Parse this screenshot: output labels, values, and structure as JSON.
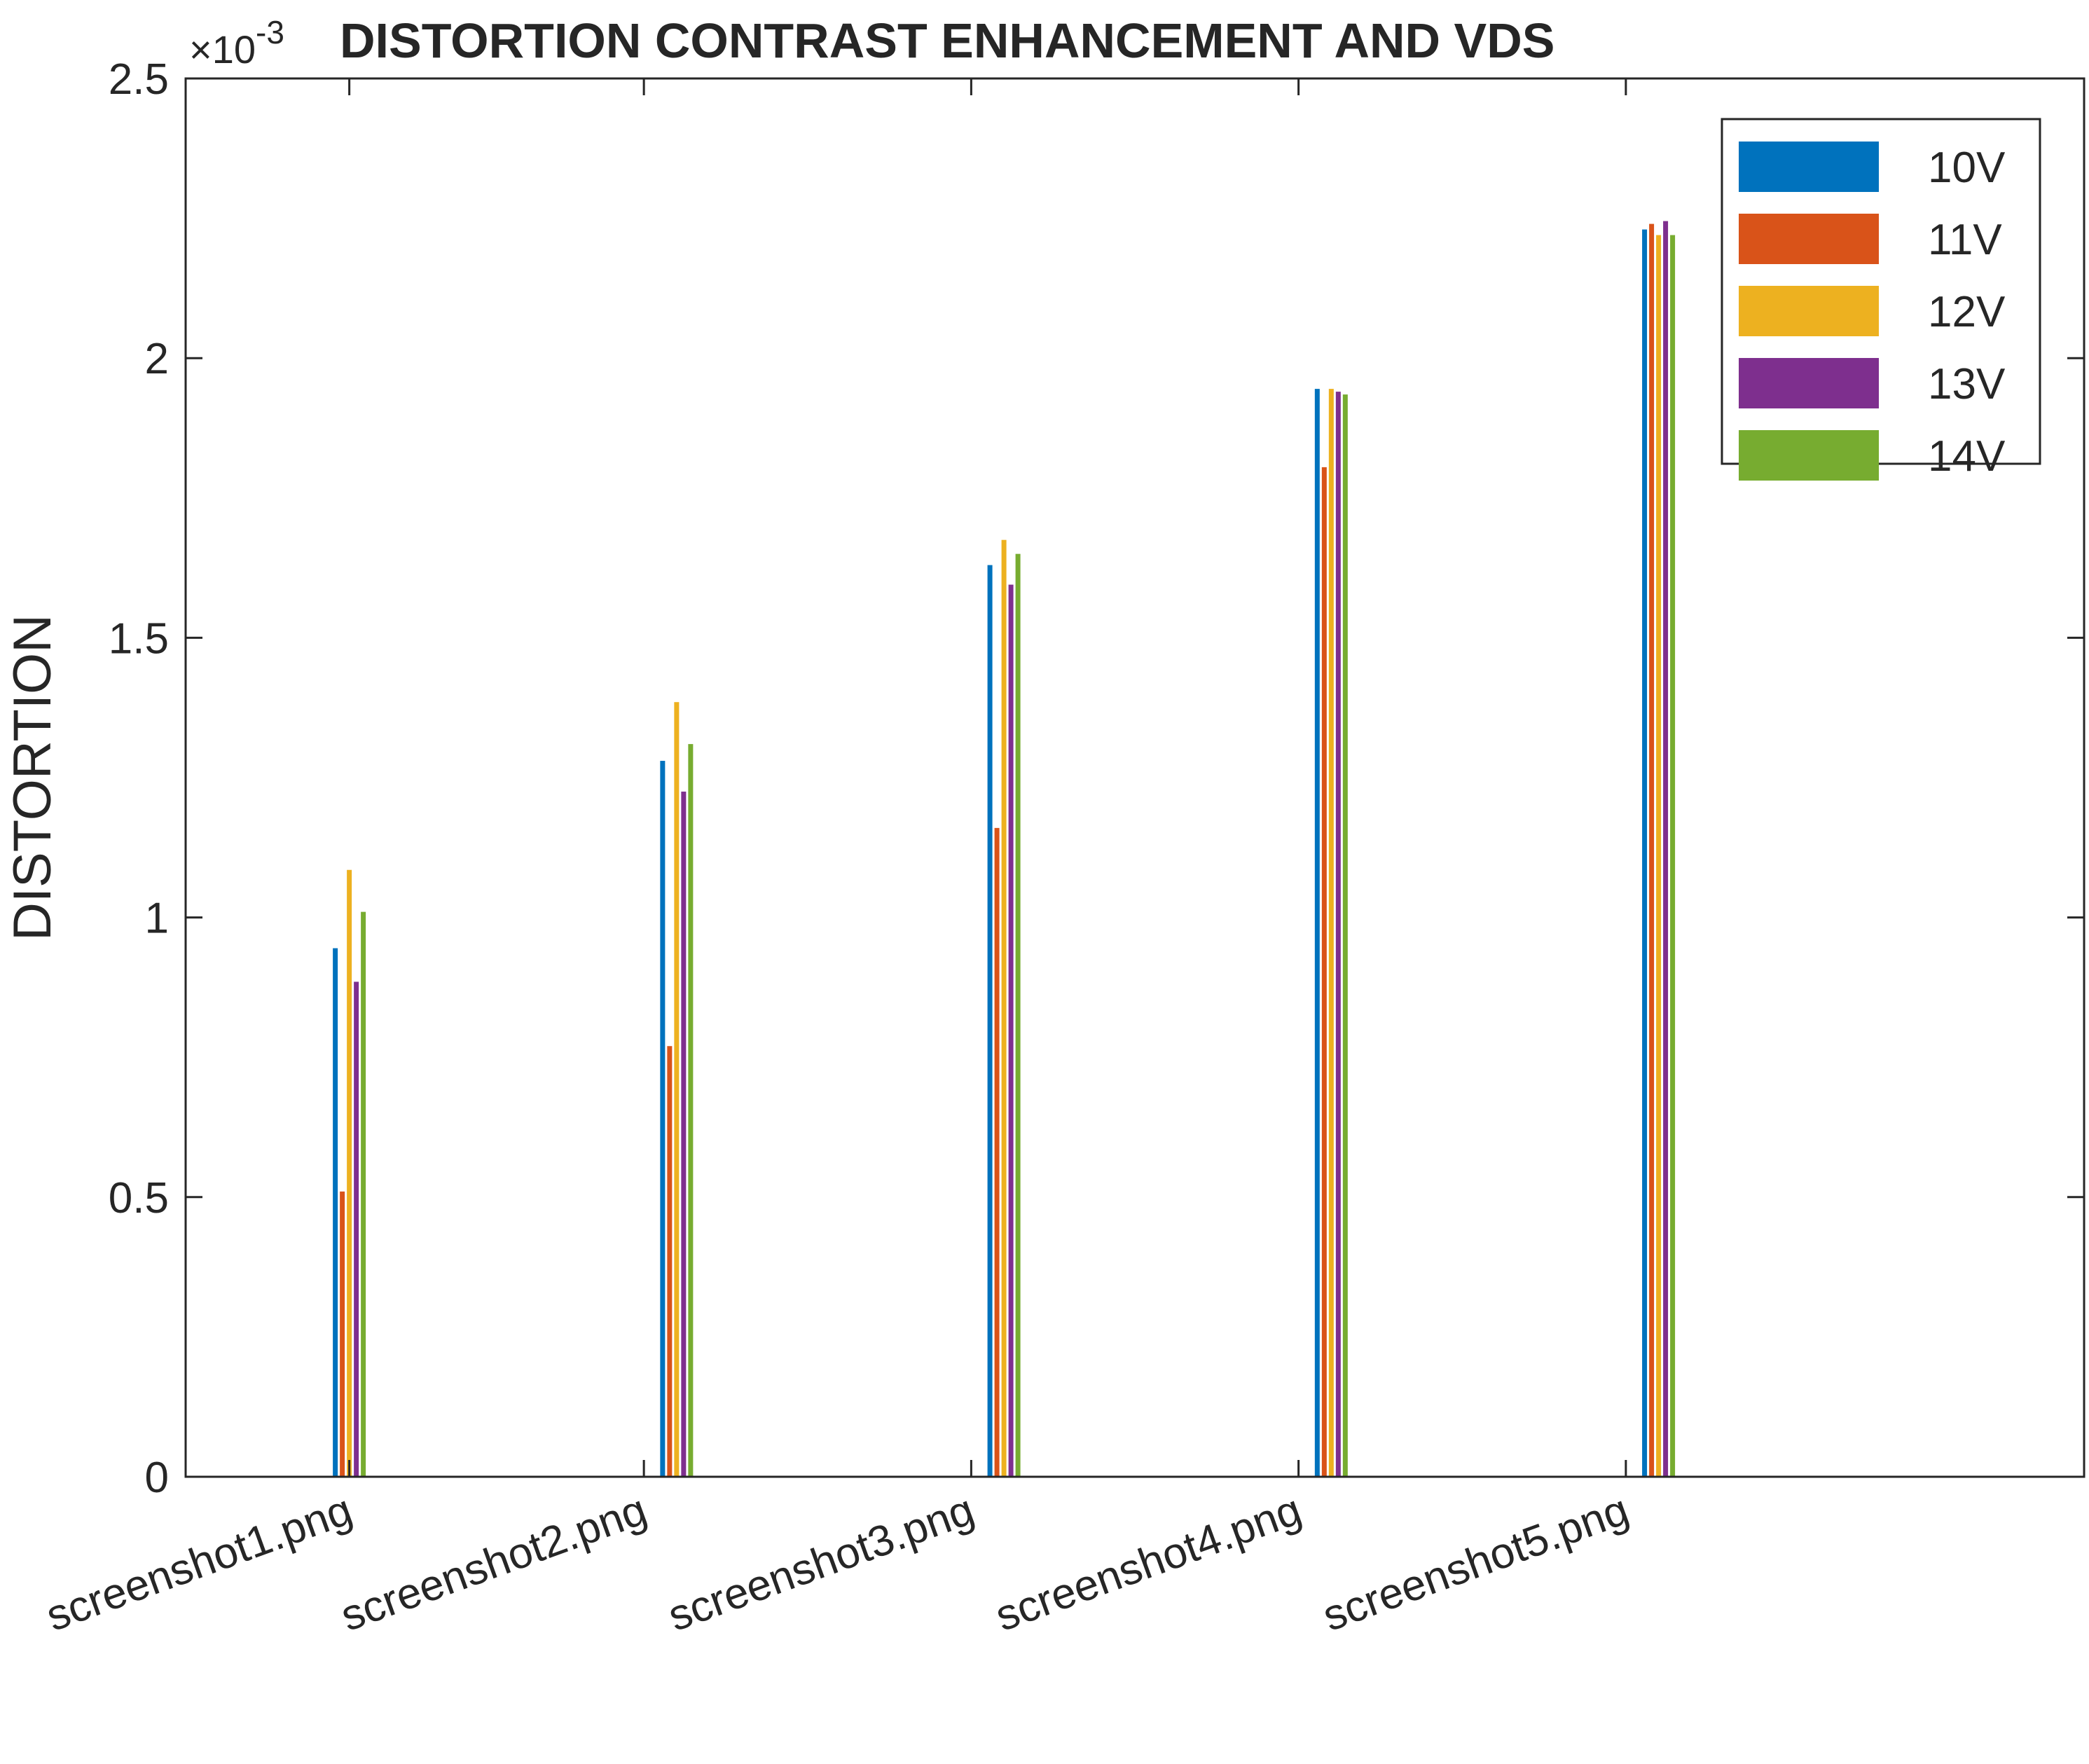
{
  "chart_data": {
    "type": "bar",
    "title": "DISTORTION CONTRAST ENHANCEMENT AND VDS",
    "ylabel": "DISTORTION",
    "xlabel": "",
    "exponent_label": "×10",
    "exponent_power": "-3",
    "ylim": [
      0,
      2.5
    ],
    "yticks": [
      0,
      0.5,
      1,
      1.5,
      2,
      2.5
    ],
    "ytick_labels": [
      "0",
      "0.5",
      "1",
      "1.5",
      "2",
      "2.5"
    ],
    "categories": [
      "screenshot1.png",
      "screenshot2.png",
      "screenshot3.png",
      "screenshot4.png",
      "screenshot5.png"
    ],
    "x_range": [
      0.5,
      6.3
    ],
    "x_ticks": [
      1,
      1.9,
      2.9,
      3.9,
      4.9
    ],
    "bar_group_centers": [
      1,
      2,
      3,
      4,
      5
    ],
    "legend_position": "top-right",
    "grid": false,
    "series": [
      {
        "name": "10V",
        "color": "#0072BD",
        "values": [
          0.945,
          1.28,
          1.63,
          1.945,
          2.23
        ]
      },
      {
        "name": "11V",
        "color": "#D95319",
        "values": [
          0.51,
          0.77,
          1.16,
          1.805,
          2.24
        ]
      },
      {
        "name": "12V",
        "color": "#EDB120",
        "values": [
          1.085,
          1.385,
          1.675,
          1.945,
          2.22
        ]
      },
      {
        "name": "13V",
        "color": "#7E2F8E",
        "values": [
          0.885,
          1.225,
          1.595,
          1.94,
          2.245
        ]
      },
      {
        "name": "14V",
        "color": "#77AC30",
        "values": [
          1.01,
          1.31,
          1.65,
          1.935,
          2.22
        ]
      }
    ]
  }
}
